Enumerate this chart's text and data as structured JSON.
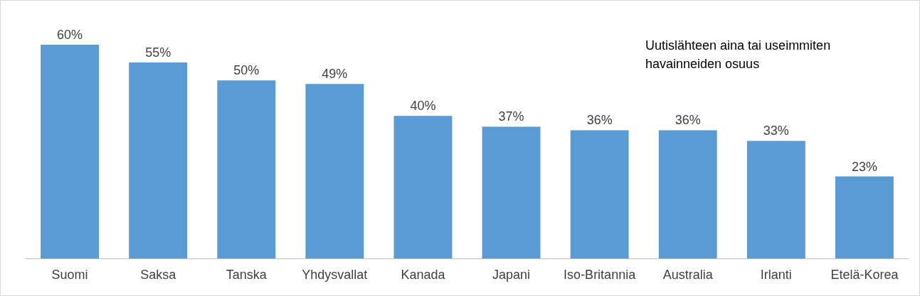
{
  "chart_data": {
    "type": "bar",
    "categories": [
      "Suomi",
      "Saksa",
      "Tanska",
      "Yhdysvallat",
      "Kanada",
      "Japani",
      "Iso-Britannia",
      "Australia",
      "Irlanti",
      "Etelä-Korea"
    ],
    "values": [
      60,
      55,
      50,
      49,
      40,
      37,
      36,
      36,
      33,
      23
    ],
    "value_labels": [
      "60%",
      "55%",
      "50%",
      "49%",
      "40%",
      "37%",
      "36%",
      "36%",
      "33%",
      "23%"
    ],
    "color": "#5b9bd5",
    "annotations": [
      "Uutislähteen aina tai useimmiten havainneiden osuus"
    ]
  }
}
